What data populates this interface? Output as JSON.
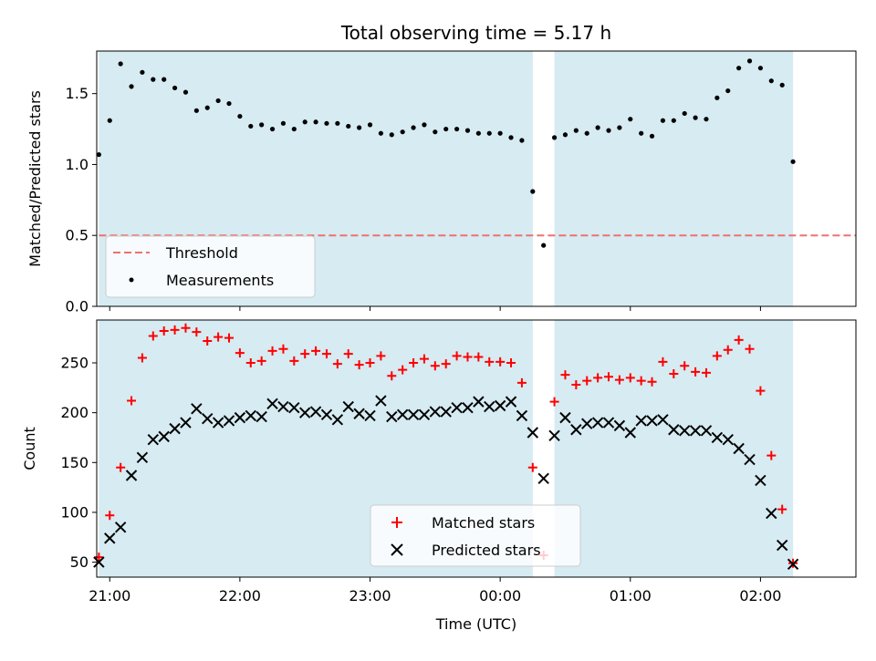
{
  "chart_data": [
    {
      "type": "scatter",
      "title": "Total observing time = 5.17 h",
      "xlabel": "",
      "ylabel": "Matched/Predicted stars",
      "xlim": [
        "20:54",
        "02:44"
      ],
      "ylim": [
        0,
        1.8
      ],
      "yticks": [
        "0.0",
        "0.5",
        "1.0",
        "1.5"
      ],
      "grid": false,
      "legend_position": "lower-left",
      "shaded_intervals": [
        [
          "20:55",
          "00:15"
        ],
        [
          "00:25",
          "02:15"
        ]
      ],
      "threshold": {
        "name": "Threshold",
        "y": 0.5,
        "color": "#f07070",
        "style": "dashed",
        "x_start": "20:55"
      },
      "series": [
        {
          "name": "Measurements",
          "color": "#000000",
          "marker": "dot",
          "x": [
            "20:55",
            "21:00",
            "21:05",
            "21:10",
            "21:15",
            "21:20",
            "21:25",
            "21:30",
            "21:35",
            "21:40",
            "21:45",
            "21:50",
            "21:55",
            "22:00",
            "22:05",
            "22:10",
            "22:15",
            "22:20",
            "22:25",
            "22:30",
            "22:35",
            "22:40",
            "22:45",
            "22:50",
            "22:55",
            "23:00",
            "23:05",
            "23:10",
            "23:15",
            "23:20",
            "23:25",
            "23:30",
            "23:35",
            "23:40",
            "23:45",
            "23:50",
            "23:55",
            "00:00",
            "00:05",
            "00:10",
            "00:15",
            "00:20",
            "00:25",
            "00:30",
            "00:35",
            "00:40",
            "00:45",
            "00:50",
            "00:55",
            "01:00",
            "01:05",
            "01:10",
            "01:15",
            "01:20",
            "01:25",
            "01:30",
            "01:35",
            "01:40",
            "01:45",
            "01:50",
            "01:55",
            "02:00",
            "02:05",
            "02:10",
            "02:15"
          ],
          "y": [
            1.07,
            1.31,
            1.71,
            1.55,
            1.65,
            1.6,
            1.6,
            1.54,
            1.51,
            1.38,
            1.4,
            1.45,
            1.43,
            1.34,
            1.27,
            1.28,
            1.25,
            1.29,
            1.25,
            1.3,
            1.3,
            1.29,
            1.29,
            1.27,
            1.26,
            1.28,
            1.22,
            1.21,
            1.23,
            1.26,
            1.28,
            1.23,
            1.25,
            1.25,
            1.24,
            1.22,
            1.22,
            1.22,
            1.19,
            1.17,
            0.81,
            0.43,
            1.19,
            1.21,
            1.24,
            1.22,
            1.26,
            1.24,
            1.26,
            1.32,
            1.22,
            1.2,
            1.31,
            1.31,
            1.36,
            1.33,
            1.32,
            1.47,
            1.52,
            1.68,
            1.73,
            1.68,
            1.59,
            1.56,
            1.02
          ]
        }
      ]
    },
    {
      "type": "scatter",
      "title": "",
      "xlabel": "Time (UTC)",
      "ylabel": "Count",
      "xlim": [
        "20:54",
        "02:44"
      ],
      "ylim": [
        35,
        293
      ],
      "xticks": [
        "21:00",
        "22:00",
        "23:00",
        "00:00",
        "01:00",
        "02:00"
      ],
      "yticks": [
        "50",
        "100",
        "150",
        "200",
        "250"
      ],
      "grid": false,
      "legend_position": "lower-center",
      "shaded_intervals": [
        [
          "20:55",
          "00:15"
        ],
        [
          "00:25",
          "02:15"
        ]
      ],
      "series": [
        {
          "name": "Matched stars",
          "color": "#ff0000",
          "marker": "plus",
          "y": [
            55,
            97,
            145,
            212,
            255,
            277,
            282,
            283,
            285,
            281,
            272,
            276,
            275,
            260,
            250,
            252,
            262,
            264,
            252,
            259,
            262,
            259,
            249,
            259,
            248,
            250,
            257,
            237,
            243,
            250,
            254,
            247,
            249,
            257,
            256,
            256,
            251,
            251,
            250,
            230,
            145,
            57,
            211,
            238,
            228,
            232,
            235,
            236,
            233,
            235,
            232,
            231,
            251,
            239,
            247,
            241,
            240,
            257,
            263,
            273,
            264,
            222,
            157,
            103,
            49
          ]
        },
        {
          "name": "Predicted stars",
          "color": "#000000",
          "marker": "x",
          "y": [
            50,
            74,
            85,
            137,
            155,
            173,
            176,
            184,
            190,
            204,
            194,
            190,
            192,
            195,
            197,
            196,
            209,
            206,
            205,
            200,
            201,
            198,
            193,
            206,
            199,
            197,
            212,
            196,
            198,
            198,
            198,
            201,
            201,
            205,
            205,
            211,
            206,
            207,
            211,
            197,
            180,
            134,
            177,
            195,
            183,
            189,
            190,
            190,
            187,
            180,
            192,
            192,
            193,
            183,
            182,
            182,
            182,
            175,
            173,
            164,
            153,
            132,
            99,
            67,
            48
          ]
        }
      ]
    }
  ]
}
